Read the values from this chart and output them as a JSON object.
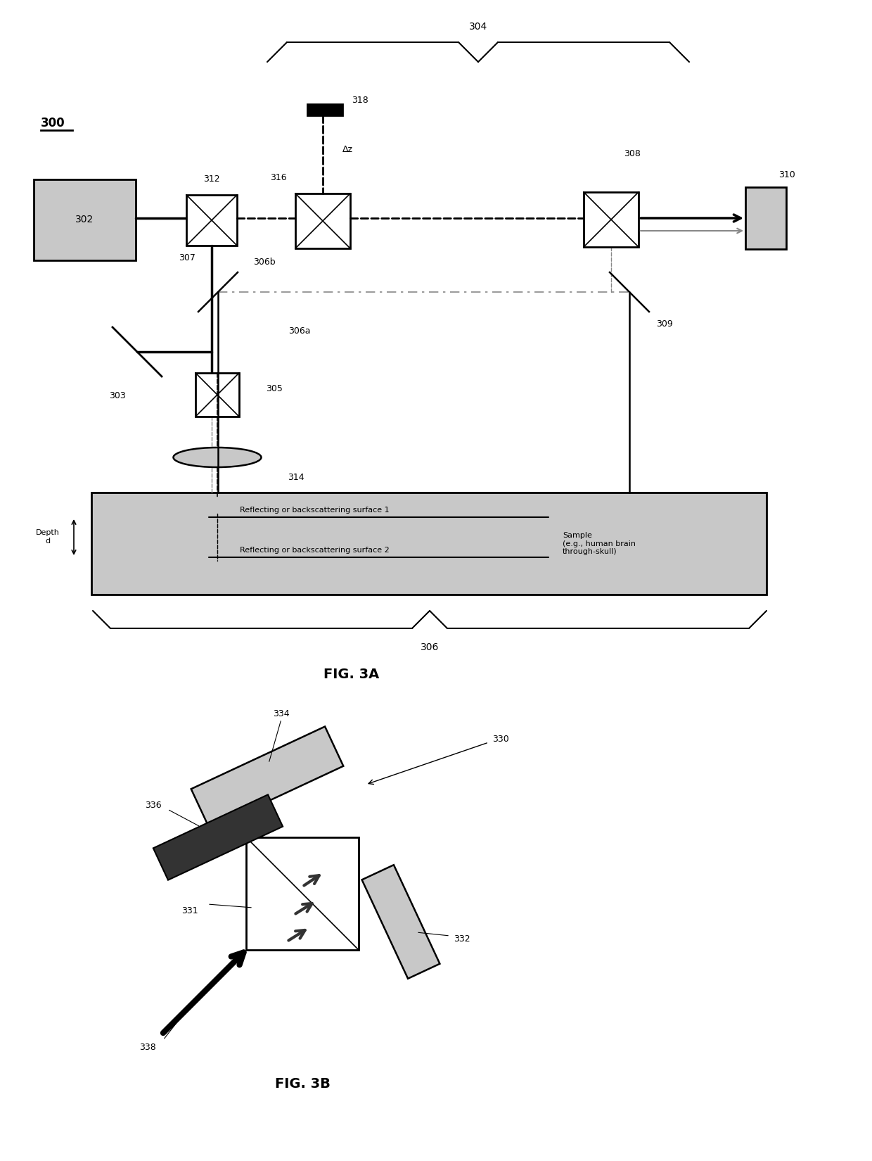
{
  "fig_width": 12.4,
  "fig_height": 16.5,
  "bg_color": "#ffffff",
  "label_300": "300",
  "label_302": "302",
  "label_303": "303",
  "label_304": "304",
  "label_305": "305",
  "label_306": "306",
  "label_306a": "306a",
  "label_306b": "306b",
  "label_307": "307",
  "label_308": "308",
  "label_309": "309",
  "label_310": "310",
  "label_312": "312",
  "label_314": "314",
  "label_316": "316",
  "label_318": "318",
  "label_delta_z": "Δz",
  "label_depth": "Depth\nd",
  "label_surf1": "Reflecting or backscattering surface 1",
  "label_surf2": "Reflecting or backscattering surface 2",
  "label_sample": "Sample\n(e.g., human brain\nthrough-skull)",
  "label_fig3a": "FIG. 3A",
  "label_330": "330",
  "label_331": "331",
  "label_332": "332",
  "label_334": "334",
  "label_336": "336",
  "label_338": "338",
  "label_fig3b": "FIG. 3B",
  "gray_light": "#c8c8c8",
  "gray_medium": "#888888",
  "gray_dark": "#333333",
  "black": "#000000"
}
